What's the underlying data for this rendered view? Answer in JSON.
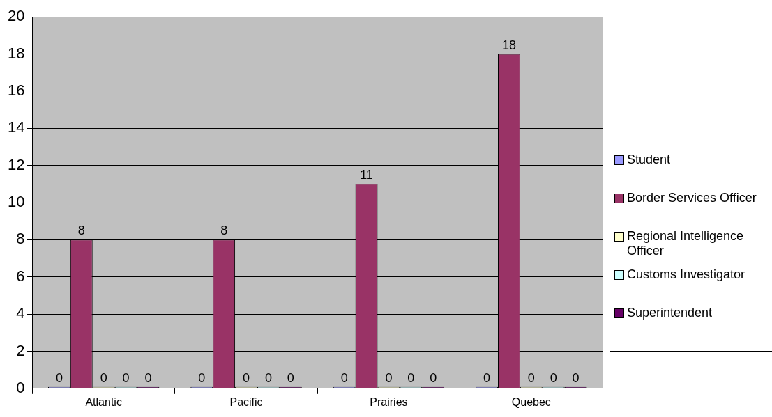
{
  "chart_data": {
    "type": "bar",
    "categories": [
      "Atlantic",
      "Pacific",
      "Prairies",
      "Quebec"
    ],
    "series": [
      {
        "name": "Student",
        "color": "#9999ff",
        "values": [
          0,
          0,
          0,
          0
        ]
      },
      {
        "name": "Border Services Officer",
        "color": "#993366",
        "values": [
          8,
          8,
          11,
          18
        ]
      },
      {
        "name": "Regional Intelligence Officer",
        "color": "#ffffcc",
        "values": [
          0,
          0,
          0,
          0
        ]
      },
      {
        "name": "Customs Investigator",
        "color": "#ccffff",
        "values": [
          0,
          0,
          0,
          0
        ]
      },
      {
        "name": "Superintendent",
        "color": "#660066",
        "values": [
          0,
          0,
          0,
          0
        ]
      }
    ],
    "ylim": [
      0,
      20
    ],
    "yticks": [
      0,
      2,
      4,
      6,
      8,
      10,
      12,
      14,
      16,
      18,
      20
    ],
    "grid": "y",
    "legend": "right",
    "data_labels": true
  }
}
